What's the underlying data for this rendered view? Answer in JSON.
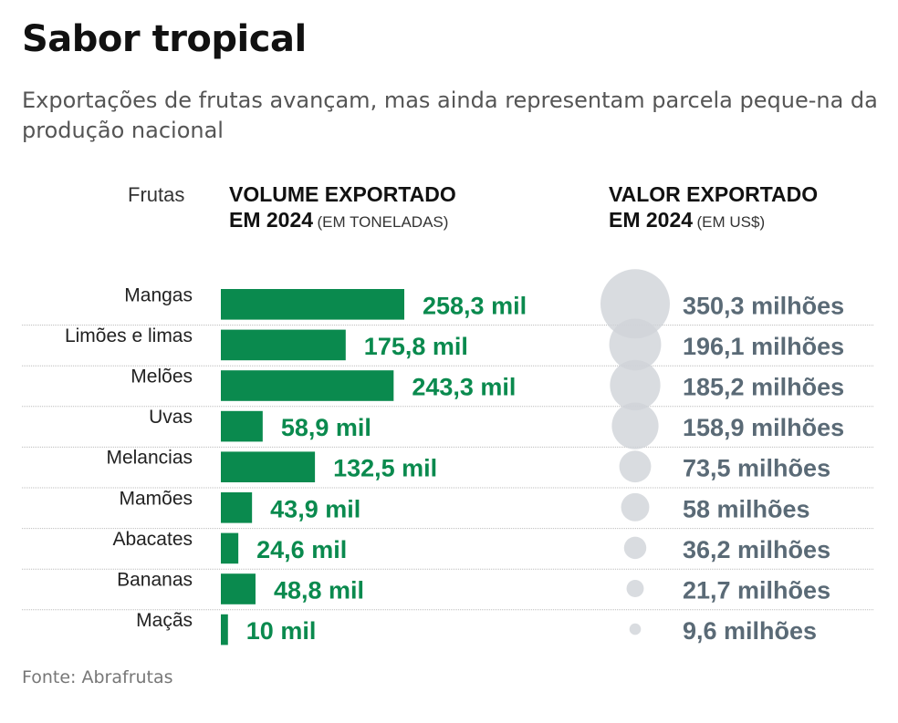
{
  "title": "Sabor tropical",
  "subtitle": "Exportações de frutas avançam, mas ainda representam parcela peque-na da produção nacional",
  "headers": {
    "fruits": "Frutas",
    "volume_line1": "VOLUME EXPORTADO",
    "volume_line2_bold": "EM 2024",
    "volume_unit": "(EM TONELADAS)",
    "value_line1": "VALOR EXPORTADO",
    "value_line2_bold": "EM 2024",
    "value_unit": "(EM US$)"
  },
  "source": "Fonte: Abrafrutas",
  "colors": {
    "bar": "#0a8a4e",
    "bar_label": "#0a8a4e",
    "bubble": "#cfd3d8",
    "bubble_label": "#5a6a76",
    "rule": "#bbbbbb"
  },
  "chart_data": {
    "type": "bar",
    "categories": [
      "Mangas",
      "Limões e limas",
      "Melões",
      "Uvas",
      "Melancias",
      "Mamões",
      "Abacates",
      "Bananas",
      "Maçãs"
    ],
    "series": [
      {
        "name": "VOLUME EXPORTADO EM 2024 (EM TONELADAS)",
        "unit": "mil toneladas",
        "values": [
          258.3,
          175.8,
          243.3,
          58.9,
          132.5,
          43.9,
          24.6,
          48.8,
          10
        ],
        "labels": [
          "258,3 mil",
          "175,8 mil",
          "243,3 mil",
          "58,9 mil",
          "132,5 mil",
          "43,9 mil",
          "24,6 mil",
          "48,8 mil",
          "10 mil"
        ]
      },
      {
        "name": "VALOR EXPORTADO EM 2024 (EM US$)",
        "unit": "milhões US$",
        "values": [
          350.3,
          196.1,
          185.2,
          158.9,
          73.5,
          58,
          36.2,
          21.7,
          9.6
        ],
        "labels": [
          "350,3 milhões",
          "196,1 milhões",
          "185,2 milhões",
          "158,9 milhões",
          "73,5 milhões",
          "58 milhões",
          "36,2 milhões",
          "21,7 milhões",
          "9,6 milhões"
        ]
      }
    ]
  }
}
